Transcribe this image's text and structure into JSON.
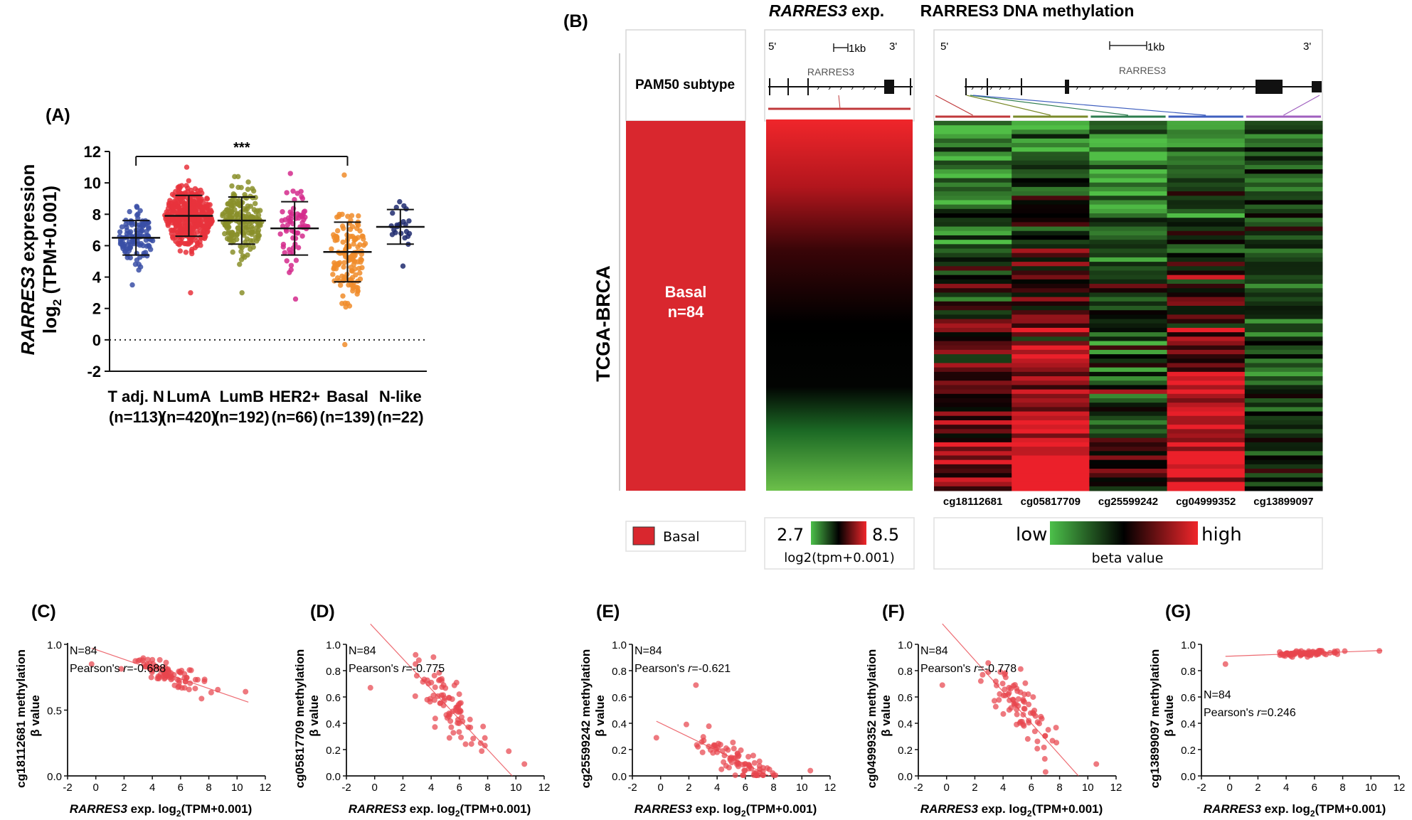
{
  "panel_labels": {
    "A": "(A)",
    "B": "(B)",
    "C": "(C)",
    "D": "(D)",
    "E": "(E)",
    "F": "(F)",
    "G": "(G)"
  },
  "chart_data": [
    {
      "id": "A",
      "type": "scatter",
      "subtype": "dot-plot-with-mean-sd",
      "ylabel_italic": "RARRES3",
      "ylabel_rest": " expression",
      "ylabel2_main": "log",
      "ylabel2_sub": "2",
      "ylabel2_rest": " (TPM+0.001)",
      "ylim": [
        -2,
        12
      ],
      "yticks": [
        -2,
        0,
        2,
        4,
        6,
        8,
        10,
        12
      ],
      "ytick_labels": [
        "-2",
        "0",
        "2",
        "4",
        "6",
        "8",
        "10",
        "12"
      ],
      "reference_line": 0,
      "significance": {
        "label": "***",
        "from": "T adj. N",
        "to": "Basal"
      },
      "groups": [
        {
          "name": "T adj. N",
          "n_label": "(n=113)",
          "n": 113,
          "mean": 6.5,
          "sd": 1.1,
          "min": 3.5,
          "max": 8.5,
          "color": "#3a4fa6"
        },
        {
          "name": "LumA",
          "n_label": "(n=420)",
          "n": 420,
          "mean": 7.9,
          "sd": 1.3,
          "min": 3.0,
          "max": 11.0,
          "color": "#e8333c"
        },
        {
          "name": "LumB",
          "n_label": "(n=192)",
          "n": 192,
          "mean": 7.6,
          "sd": 1.5,
          "min": 3.0,
          "max": 10.4,
          "color": "#8a8f2a"
        },
        {
          "name": "HER2+",
          "n_label": "(n=66)",
          "n": 66,
          "mean": 7.1,
          "sd": 1.7,
          "min": 2.6,
          "max": 10.6,
          "color": "#d42a8c"
        },
        {
          "name": "Basal",
          "n_label": "(n=139)",
          "n": 139,
          "mean": 5.6,
          "sd": 1.9,
          "min": -0.3,
          "max": 10.5,
          "color": "#f08c2a"
        },
        {
          "name": "N-like",
          "n_label": "(n=22)",
          "n": 22,
          "mean": 7.2,
          "sd": 1.1,
          "min": 4.7,
          "max": 8.8,
          "color": "#1f2a6e"
        }
      ]
    },
    {
      "id": "B",
      "type": "heatmap",
      "title_exp_italic": "RARRES3",
      "title_exp_rest": " exp.",
      "title_meth": "RARRES3 DNA methylation",
      "side_label": "TCGA-BRCA",
      "pam50_label": "PAM50 subtype",
      "subtype_name": "Basal",
      "subtype_n": "n=84",
      "gene_name": "RARRES3",
      "five_prime": "5'",
      "three_prime": "3'",
      "scale_bar": "1kb",
      "probes": [
        "cg18112681",
        "cg05817709",
        "cg25599242",
        "cg04999352",
        "cg13899097"
      ],
      "probe_colors": [
        "#c0393b",
        "#7a8a2a",
        "#2e7d4f",
        "#3f5fbf",
        "#a05fbf"
      ],
      "legend_subtype": "Basal",
      "exp_min": "2.7",
      "exp_max": "8.5",
      "exp_legend_label": "log2(tpm+0.001)",
      "meth_low": "low",
      "meth_high": "high",
      "meth_legend_label": "beta value",
      "n_rows": 84,
      "colors": {
        "basal": "#d9272e",
        "exp_high": "#e8202a",
        "exp_low": "#6cbf45",
        "meth_low": "#5cbf4a",
        "meth_high": "#e8202a",
        "mid": "#000000"
      }
    },
    {
      "id": "C",
      "type": "scatter",
      "probe": "cg18112681",
      "ylabel": "cg18112681 methylation",
      "ylabel2": "β value",
      "xlabel_italic": "RARRES3",
      "xlabel_rest": " exp. log",
      "xlabel_sub": "2",
      "xlabel_end": "(TPM+0.001)",
      "n_text": "N=84",
      "r_pre": "Pearson's ",
      "r_sym": "r",
      "r_val": "=-0.688",
      "xlim": [
        -2,
        12
      ],
      "xticks": [
        "-2",
        "0",
        "2",
        "4",
        "6",
        "8",
        "10",
        "12"
      ],
      "ylim": [
        0,
        1.0
      ],
      "yticks": [
        "0.0",
        "0.5",
        "1.0"
      ],
      "ytick_values": [
        0,
        0.5,
        1.0
      ],
      "fit": {
        "slope": -0.037,
        "intercept": 0.96
      },
      "cloud": {
        "xmean": 5.0,
        "xsd": 2.0,
        "noise": 0.055,
        "floor": 0.38,
        "ceil": 0.99
      },
      "outliers": [
        [
          -0.3,
          0.85
        ],
        [
          10.6,
          0.64
        ]
      ],
      "dot_color": "#e8454d"
    },
    {
      "id": "D",
      "type": "scatter",
      "probe": "cg05817709",
      "ylabel": "cg05817709 methylation",
      "ylabel2": "β value",
      "xlabel_italic": "RARRES3",
      "xlabel_rest": " exp. log",
      "xlabel_sub": "2",
      "xlabel_end": "(TPM+0.001)",
      "n_text": "N=84",
      "r_pre": "Pearson's ",
      "r_sym": "r",
      "r_val": "=-0.775",
      "xlim": [
        -2,
        12
      ],
      "xticks": [
        "-2",
        "0",
        "2",
        "4",
        "6",
        "8",
        "10",
        "12"
      ],
      "ylim": [
        0,
        1.0
      ],
      "yticks": [
        "0.0",
        "0.2",
        "0.4",
        "0.6",
        "0.8",
        "1.0"
      ],
      "ytick_values": [
        0,
        0.2,
        0.4,
        0.6,
        0.8,
        1.0
      ],
      "fit": {
        "slope": -0.115,
        "intercept": 1.12
      },
      "cloud": {
        "xmean": 5.2,
        "xsd": 1.9,
        "noise": 0.16,
        "floor": 0.02,
        "ceil": 0.92
      },
      "outliers": [
        [
          -0.3,
          0.67
        ],
        [
          10.6,
          0.09
        ]
      ],
      "dot_color": "#e8454d"
    },
    {
      "id": "E",
      "type": "scatter",
      "probe": "cg25599242",
      "ylabel": "cg25599242 methylation",
      "ylabel2": "β value",
      "xlabel_italic": "RARRES3",
      "xlabel_rest": " exp. log",
      "xlabel_sub": "2",
      "xlabel_end": "(TPM+0.001)",
      "n_text": "N=84",
      "r_pre": "Pearson's ",
      "r_sym": "r",
      "r_val": "=-0.621",
      "xlim": [
        -2,
        12
      ],
      "xticks": [
        "-2",
        "0",
        "2",
        "4",
        "6",
        "8",
        "10",
        "12"
      ],
      "ylim": [
        0,
        1.0
      ],
      "yticks": [
        "0.0",
        "0.2",
        "0.4",
        "0.6",
        "0.8",
        "1.0"
      ],
      "ytick_values": [
        0,
        0.2,
        0.4,
        0.6,
        0.8,
        1.0
      ],
      "fit": {
        "slope": -0.052,
        "intercept": 0.4
      },
      "cloud": {
        "xmean": 5.5,
        "xsd": 1.8,
        "noise": 0.08,
        "floor": 0.005,
        "ceil": 0.72
      },
      "outliers": [
        [
          -0.3,
          0.29
        ],
        [
          10.6,
          0.04
        ],
        [
          2.5,
          0.69
        ]
      ],
      "dot_color": "#e8454d"
    },
    {
      "id": "F",
      "type": "scatter",
      "probe": "cg04999352",
      "ylabel": "cg04999352 methylation",
      "ylabel2": "β value",
      "xlabel_italic": "RARRES3",
      "xlabel_rest": " exp. log",
      "xlabel_sub": "2",
      "xlabel_end": "(TPM+0.001)",
      "n_text": "N=84",
      "r_pre": "Pearson's ",
      "r_sym": "r",
      "r_val": "=-0.778",
      "xlim": [
        -2,
        12
      ],
      "xticks": [
        "-2",
        "0",
        "2",
        "4",
        "6",
        "8",
        "10",
        "12"
      ],
      "ylim": [
        0,
        1.0
      ],
      "yticks": [
        "0.0",
        "0.2",
        "0.4",
        "0.6",
        "0.8",
        "1.0"
      ],
      "ytick_values": [
        0,
        0.2,
        0.4,
        0.6,
        0.8,
        1.0
      ],
      "fit": {
        "slope": -0.12,
        "intercept": 1.12
      },
      "cloud": {
        "xmean": 5.2,
        "xsd": 1.9,
        "noise": 0.15,
        "floor": 0.02,
        "ceil": 0.92
      },
      "outliers": [
        [
          -0.3,
          0.69
        ],
        [
          10.6,
          0.09
        ]
      ],
      "dot_color": "#e8454d"
    },
    {
      "id": "G",
      "type": "scatter",
      "probe": "cg13899097",
      "ylabel": "cg13899097 methylation",
      "ylabel2": "β value",
      "xlabel_italic": "RARRES3",
      "xlabel_rest": " exp. log",
      "xlabel_sub": "2",
      "xlabel_end": "(TPM+0.001)",
      "n_text": "N=84",
      "r_pre": "Pearson's ",
      "r_sym": "r",
      "r_val": "=0.246",
      "xlim": [
        -2,
        12
      ],
      "xticks": [
        "-2",
        "0",
        "2",
        "4",
        "6",
        "8",
        "10",
        "12"
      ],
      "ylim": [
        0,
        1.0
      ],
      "yticks": [
        "0.0",
        "0.2",
        "0.4",
        "0.6",
        "0.8",
        "1.0"
      ],
      "ytick_values": [
        0,
        0.2,
        0.4,
        0.6,
        0.8,
        1.0
      ],
      "fit": {
        "slope": 0.004,
        "intercept": 0.91
      },
      "cloud": {
        "xmean": 5.6,
        "xsd": 1.6,
        "noise": 0.014,
        "floor": 0.87,
        "ceil": 0.97
      },
      "outliers": [
        [
          -0.3,
          0.85
        ],
        [
          10.6,
          0.95
        ]
      ],
      "dot_color": "#e8454d"
    }
  ]
}
